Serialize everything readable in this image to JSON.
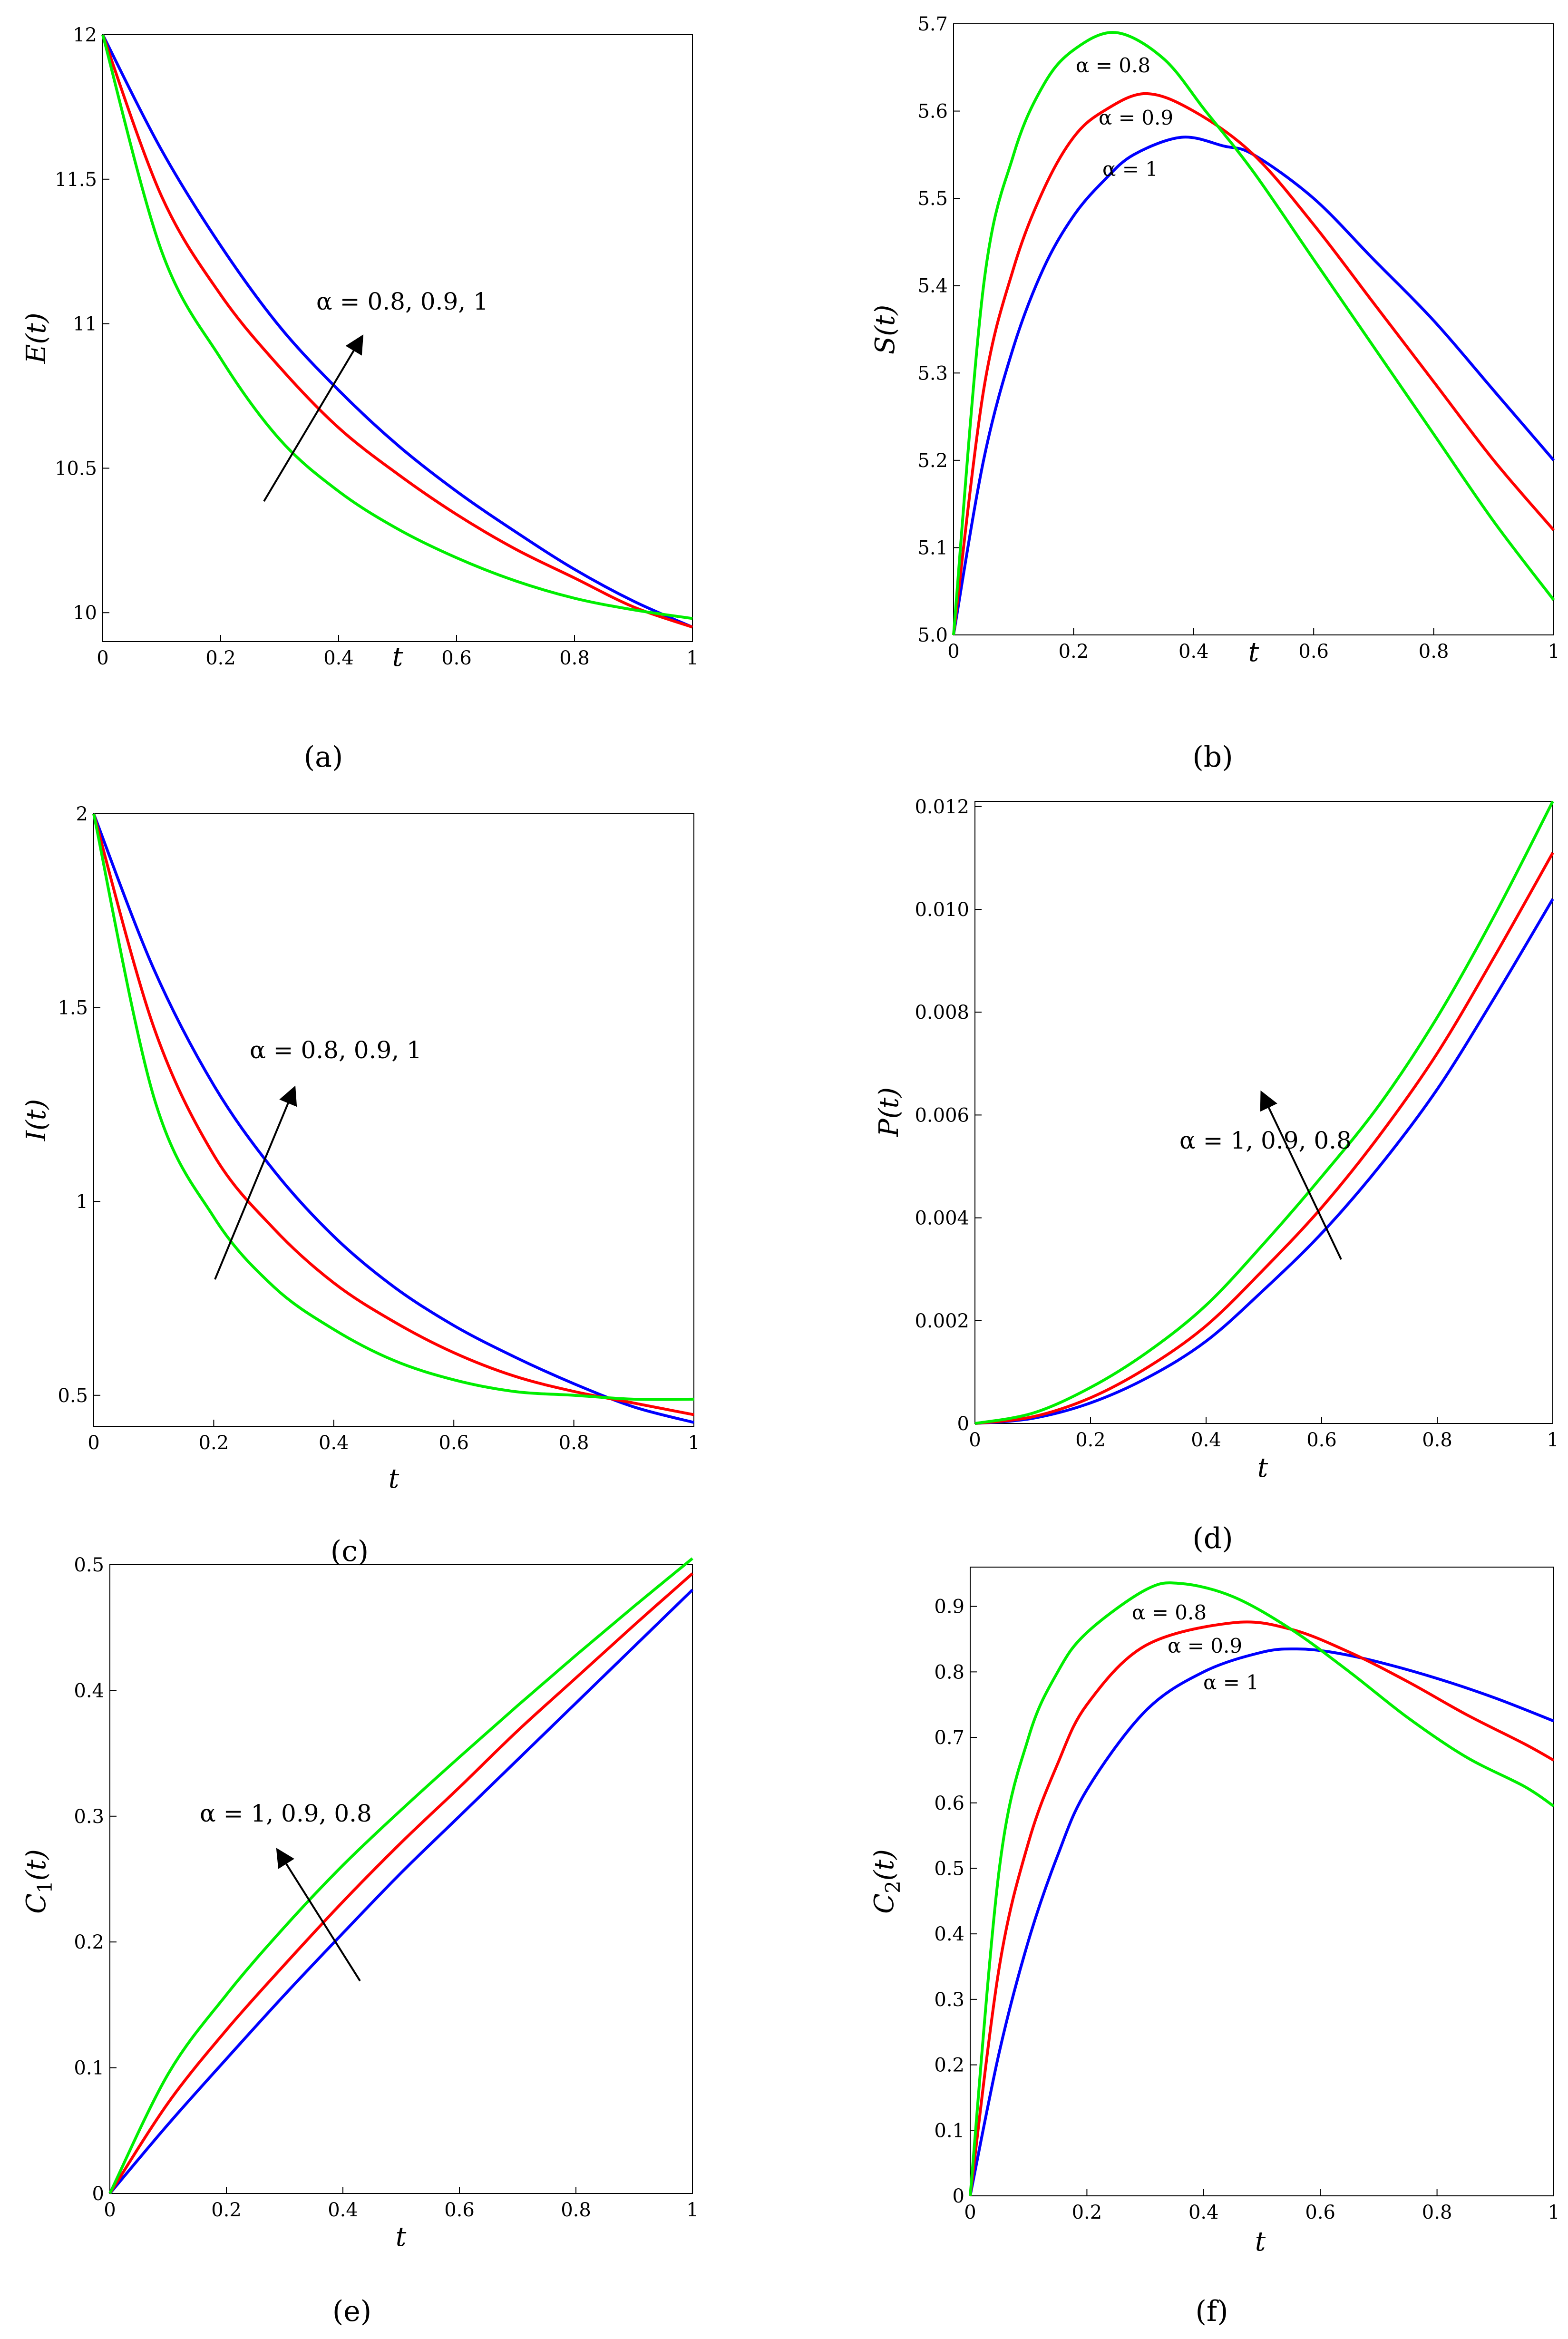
{
  "colors": {
    "alpha_1": "#0000ff",
    "alpha_0_9": "#ff0000",
    "alpha_0_8": "#00ee00"
  },
  "chart_data": [
    {
      "id": "a",
      "type": "line",
      "panel_label": "(a)",
      "xlabel": "t",
      "ylabel": "E(t)",
      "xlim": [
        0,
        1
      ],
      "ylim": [
        9.9,
        12
      ],
      "xticks": [
        "0",
        "0.2",
        "0.4",
        "0.6",
        "0.8",
        "1"
      ],
      "yticks": [
        "10",
        "10.5",
        "11",
        "11.5",
        "12"
      ],
      "annotation": "α = 0.8, 0.9, 1",
      "series": [
        {
          "name": "α = 1",
          "color": "#0000ff",
          "x": [
            0,
            0.1,
            0.2,
            0.3,
            0.4,
            0.5,
            0.6,
            0.7,
            0.8,
            0.9,
            1
          ],
          "y": [
            12,
            11.6,
            11.27,
            10.99,
            10.77,
            10.58,
            10.42,
            10.28,
            10.15,
            10.04,
            9.95
          ]
        },
        {
          "name": "α = 0.9",
          "color": "#ff0000",
          "x": [
            0,
            0.1,
            0.2,
            0.3,
            0.4,
            0.5,
            0.6,
            0.7,
            0.8,
            0.9,
            1
          ],
          "y": [
            12,
            11.44,
            11.1,
            10.85,
            10.64,
            10.48,
            10.34,
            10.22,
            10.12,
            10.02,
            9.95
          ]
        },
        {
          "name": "α = 0.8",
          "color": "#00ee00",
          "x": [
            0,
            0.1,
            0.2,
            0.3,
            0.4,
            0.5,
            0.6,
            0.7,
            0.8,
            0.9,
            1
          ],
          "y": [
            12,
            11.25,
            10.88,
            10.6,
            10.42,
            10.29,
            10.19,
            10.11,
            10.05,
            10.01,
            9.98
          ]
        }
      ]
    },
    {
      "id": "b",
      "type": "line",
      "panel_label": "(b)",
      "xlabel": "t",
      "ylabel": "S(t)",
      "xlim": [
        0,
        1
      ],
      "ylim": [
        5.0,
        5.7
      ],
      "xticks": [
        "0",
        "0.2",
        "0.4",
        "0.6",
        "0.8",
        "1"
      ],
      "yticks": [
        "5.0",
        "5.1",
        "5.2",
        "5.3",
        "5.4",
        "5.5",
        "5.6",
        "5.7"
      ],
      "curve_labels": [
        "α = 0.8",
        "α = 0.9",
        "α = 1"
      ],
      "series": [
        {
          "name": "α = 1",
          "color": "#0000ff",
          "x": [
            0,
            0.05,
            0.1,
            0.15,
            0.2,
            0.25,
            0.3,
            0.38,
            0.45,
            0.5,
            0.6,
            0.7,
            0.8,
            0.9,
            1
          ],
          "y": [
            5,
            5.2,
            5.33,
            5.42,
            5.48,
            5.52,
            5.55,
            5.57,
            5.56,
            5.55,
            5.5,
            5.43,
            5.36,
            5.28,
            5.2
          ]
        },
        {
          "name": "α = 0.9",
          "color": "#ff0000",
          "x": [
            0,
            0.05,
            0.1,
            0.15,
            0.2,
            0.25,
            0.32,
            0.4,
            0.5,
            0.6,
            0.7,
            0.8,
            0.9,
            1
          ],
          "y": [
            5,
            5.28,
            5.42,
            5.51,
            5.57,
            5.6,
            5.62,
            5.6,
            5.55,
            5.47,
            5.38,
            5.29,
            5.2,
            5.12
          ]
        },
        {
          "name": "α = 0.8",
          "color": "#00ee00",
          "x": [
            0,
            0.05,
            0.1,
            0.15,
            0.2,
            0.27,
            0.35,
            0.42,
            0.5,
            0.6,
            0.7,
            0.8,
            0.9,
            1
          ],
          "y": [
            5,
            5.4,
            5.55,
            5.63,
            5.67,
            5.69,
            5.66,
            5.6,
            5.53,
            5.43,
            5.33,
            5.23,
            5.13,
            5.04
          ]
        }
      ]
    },
    {
      "id": "c",
      "type": "line",
      "panel_label": "(c)",
      "xlabel": "t",
      "ylabel": "I(t)",
      "xlim": [
        0,
        1
      ],
      "ylim": [
        0.42,
        2
      ],
      "xticks": [
        "0",
        "0.2",
        "0.4",
        "0.6",
        "0.8",
        "1"
      ],
      "yticks": [
        "0.5",
        "1",
        "1.5",
        "2"
      ],
      "annotation": "α = 0.8, 0.9, 1",
      "series": [
        {
          "name": "α = 1",
          "color": "#0000ff",
          "x": [
            0,
            0.1,
            0.2,
            0.3,
            0.4,
            0.5,
            0.6,
            0.7,
            0.8,
            0.9,
            1
          ],
          "y": [
            2,
            1.6,
            1.3,
            1.08,
            0.91,
            0.78,
            0.68,
            0.6,
            0.53,
            0.47,
            0.43
          ]
        },
        {
          "name": "α = 0.9",
          "color": "#ff0000",
          "x": [
            0,
            0.1,
            0.2,
            0.3,
            0.4,
            0.5,
            0.6,
            0.7,
            0.8,
            0.9,
            1
          ],
          "y": [
            2,
            1.45,
            1.12,
            0.93,
            0.79,
            0.69,
            0.61,
            0.55,
            0.51,
            0.48,
            0.45
          ]
        },
        {
          "name": "α = 0.8",
          "color": "#00ee00",
          "x": [
            0,
            0.1,
            0.2,
            0.3,
            0.4,
            0.5,
            0.6,
            0.7,
            0.8,
            0.9,
            1
          ],
          "y": [
            2,
            1.27,
            0.96,
            0.78,
            0.67,
            0.59,
            0.54,
            0.51,
            0.5,
            0.49,
            0.49
          ]
        }
      ]
    },
    {
      "id": "d",
      "type": "line",
      "panel_label": "(d)",
      "xlabel": "t",
      "ylabel": "P(t)",
      "xlim": [
        0,
        1
      ],
      "ylim": [
        0,
        0.0121
      ],
      "xticks": [
        "0",
        "0.2",
        "0.4",
        "0.6",
        "0.8",
        "1"
      ],
      "yticks": [
        "0",
        "0.002",
        "0.004",
        "0.006",
        "0.008",
        "0.010",
        "0.012"
      ],
      "annotation": "α = 1, 0.9, 0.8",
      "series": [
        {
          "name": "α = 1",
          "color": "#0000ff",
          "x": [
            0,
            0.1,
            0.2,
            0.3,
            0.4,
            0.5,
            0.6,
            0.7,
            0.8,
            0.9,
            1
          ],
          "y": [
            0,
            0.0001,
            0.0004,
            0.0009,
            0.0016,
            0.0026,
            0.0037,
            0.005,
            0.0065,
            0.0083,
            0.0102
          ]
        },
        {
          "name": "α = 0.9",
          "color": "#ff0000",
          "x": [
            0,
            0.1,
            0.2,
            0.3,
            0.4,
            0.5,
            0.6,
            0.7,
            0.8,
            0.9,
            1
          ],
          "y": [
            0,
            0.00013,
            0.0005,
            0.0011,
            0.0019,
            0.003,
            0.0042,
            0.0056,
            0.0072,
            0.0091,
            0.0111
          ]
        },
        {
          "name": "α = 0.8",
          "color": "#00ee00",
          "x": [
            0,
            0.1,
            0.2,
            0.3,
            0.4,
            0.5,
            0.6,
            0.7,
            0.8,
            0.9,
            1
          ],
          "y": [
            0,
            0.0002,
            0.0007,
            0.0014,
            0.0023,
            0.0035,
            0.0048,
            0.0062,
            0.0079,
            0.0099,
            0.0121
          ]
        }
      ]
    },
    {
      "id": "e",
      "type": "line",
      "panel_label": "(e)",
      "xlabel": "t",
      "ylabel": "C1(t)",
      "ylabel_main": "C",
      "ylabel_sub": "1",
      "ylabel_tail": "(t)",
      "xlim": [
        0,
        1
      ],
      "ylim": [
        0,
        0.5
      ],
      "xticks": [
        "0",
        "0.2",
        "0.4",
        "0.6",
        "0.8",
        "1"
      ],
      "yticks": [
        "0",
        "0.1",
        "0.2",
        "0.3",
        "0.4",
        "0.5"
      ],
      "annotation": "α = 1, 0.9, 0.8",
      "series": [
        {
          "name": "α = 1",
          "color": "#0000ff",
          "x": [
            0,
            0.1,
            0.2,
            0.3,
            0.4,
            0.5,
            0.6,
            0.7,
            0.8,
            0.9,
            1
          ],
          "y": [
            0,
            0.055,
            0.107,
            0.158,
            0.207,
            0.255,
            0.3,
            0.345,
            0.39,
            0.435,
            0.48
          ]
        },
        {
          "name": "α = 0.9",
          "color": "#ff0000",
          "x": [
            0,
            0.1,
            0.2,
            0.3,
            0.4,
            0.5,
            0.6,
            0.7,
            0.8,
            0.9,
            1
          ],
          "y": [
            0,
            0.072,
            0.13,
            0.182,
            0.232,
            0.279,
            0.323,
            0.368,
            0.41,
            0.452,
            0.493
          ]
        },
        {
          "name": "α = 0.8",
          "color": "#00ee00",
          "x": [
            0,
            0.1,
            0.2,
            0.3,
            0.4,
            0.5,
            0.6,
            0.7,
            0.8,
            0.9,
            1
          ],
          "y": [
            0,
            0.095,
            0.158,
            0.212,
            0.261,
            0.305,
            0.347,
            0.388,
            0.428,
            0.467,
            0.505
          ]
        }
      ]
    },
    {
      "id": "f",
      "type": "line",
      "panel_label": "(f)",
      "xlabel": "t",
      "ylabel": "C2(t)",
      "ylabel_main": "C",
      "ylabel_sub": "2",
      "ylabel_tail": "(t)",
      "xlim": [
        0,
        1
      ],
      "ylim": [
        0,
        0.96
      ],
      "xticks": [
        "0",
        "0.2",
        "0.4",
        "0.6",
        "0.8",
        "1"
      ],
      "yticks": [
        "0",
        "0.1",
        "0.2",
        "0.3",
        "0.4",
        "0.5",
        "0.6",
        "0.7",
        "0.8",
        "0.9"
      ],
      "curve_labels": [
        "α = 0.8",
        "α = 0.9",
        "α = 1"
      ],
      "series": [
        {
          "name": "α = 1",
          "color": "#0000ff",
          "x": [
            0,
            0.05,
            0.1,
            0.15,
            0.2,
            0.3,
            0.4,
            0.5,
            0.56,
            0.62,
            0.7,
            0.8,
            0.9,
            1
          ],
          "y": [
            0,
            0.22,
            0.39,
            0.52,
            0.62,
            0.74,
            0.8,
            0.83,
            0.835,
            0.83,
            0.815,
            0.79,
            0.76,
            0.725
          ]
        },
        {
          "name": "α = 0.9",
          "color": "#ff0000",
          "x": [
            0,
            0.05,
            0.1,
            0.15,
            0.2,
            0.3,
            0.45,
            0.55,
            0.65,
            0.75,
            0.85,
            0.95,
            1
          ],
          "y": [
            0,
            0.35,
            0.54,
            0.66,
            0.75,
            0.84,
            0.875,
            0.865,
            0.83,
            0.785,
            0.735,
            0.69,
            0.665
          ]
        },
        {
          "name": "α = 0.8",
          "color": "#00ee00",
          "x": [
            0,
            0.05,
            0.1,
            0.15,
            0.2,
            0.3,
            0.36,
            0.45,
            0.55,
            0.65,
            0.75,
            0.85,
            0.95,
            1
          ],
          "y": [
            0,
            0.5,
            0.7,
            0.8,
            0.86,
            0.925,
            0.935,
            0.915,
            0.865,
            0.8,
            0.73,
            0.67,
            0.625,
            0.595
          ]
        }
      ]
    }
  ]
}
